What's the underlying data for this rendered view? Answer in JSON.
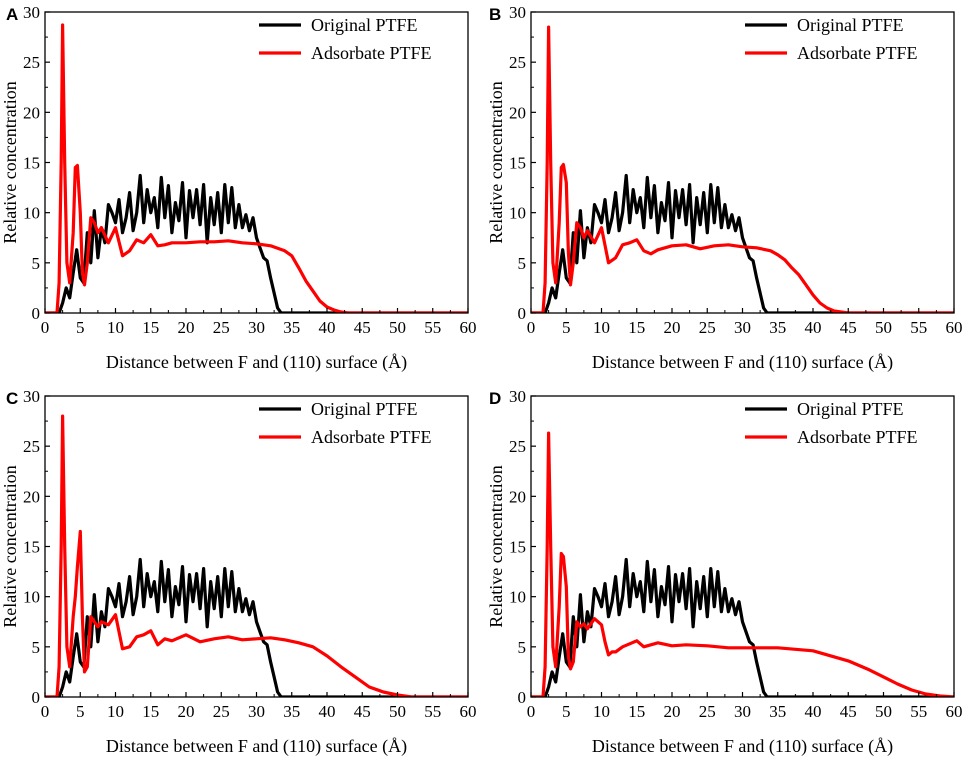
{
  "chart_data": [
    {
      "panel": "A",
      "type": "line",
      "xlabel": "Distance between F and (110) surface (Å)",
      "ylabel": "Relative concentration",
      "xlim": [
        0,
        60
      ],
      "ylim": [
        0,
        30
      ],
      "xticks": [
        0,
        5,
        10,
        15,
        20,
        25,
        30,
        35,
        40,
        45,
        50,
        55,
        60
      ],
      "yticks": [
        0,
        5,
        10,
        15,
        20,
        25,
        30
      ],
      "legend": "top-right",
      "series": [
        {
          "name": "Original PTFE",
          "color": "#000000",
          "x": [
            0,
            2,
            2.5,
            3,
            3.5,
            4,
            4.5,
            5,
            5.5,
            6,
            6.5,
            7,
            7.5,
            8,
            8.5,
            9,
            9.5,
            10,
            10.5,
            11,
            11.5,
            12,
            12.5,
            13,
            13.5,
            14,
            14.5,
            15,
            15.5,
            16,
            16.5,
            17,
            17.5,
            18,
            18.5,
            19,
            19.5,
            20,
            20.5,
            21,
            21.5,
            22,
            22.5,
            23,
            23.5,
            24,
            24.5,
            25,
            25.5,
            26,
            26.5,
            27,
            27.5,
            28,
            28.5,
            29,
            29.5,
            30,
            30.5,
            31,
            31.5,
            32,
            32.5,
            33,
            33.5,
            34,
            60
          ],
          "y": [
            0,
            0,
            1,
            2.5,
            1.5,
            4,
            6.3,
            3.5,
            3,
            8,
            5,
            10.2,
            5.5,
            8.5,
            7,
            10.8,
            10,
            9,
            11.3,
            8,
            9.5,
            12,
            8.2,
            10,
            13.7,
            9,
            12.3,
            10,
            11.5,
            8.5,
            13.5,
            9.5,
            12.7,
            8,
            11,
            9.2,
            13,
            7.5,
            12.2,
            9.5,
            12.3,
            8.8,
            12.8,
            7,
            11.5,
            8.8,
            12,
            8,
            12.8,
            9,
            12.5,
            8.5,
            10.8,
            8.5,
            9.8,
            8.2,
            9.5,
            7.5,
            6.5,
            5.5,
            5.2,
            3.5,
            2,
            0.5,
            0,
            0,
            0
          ]
        },
        {
          "name": "Adsorbate PTFE",
          "color": "#ff0000",
          "x": [
            0,
            1.7,
            2,
            2.3,
            2.5,
            2.8,
            3.1,
            3.5,
            4,
            4.3,
            4.6,
            5,
            5.3,
            5.6,
            6,
            6.5,
            7,
            7.5,
            8,
            9,
            10,
            11,
            12,
            13,
            14,
            15,
            16,
            17,
            18,
            20,
            22,
            24,
            26,
            28,
            30,
            32,
            34,
            35,
            36,
            37,
            38,
            39,
            40,
            41,
            42,
            43,
            45,
            50,
            60
          ],
          "y": [
            0,
            0,
            3,
            15,
            28.7,
            15,
            5,
            3,
            8,
            14.5,
            14.7,
            10,
            4,
            2.8,
            5,
            9.5,
            9,
            8,
            8.5,
            7,
            8.5,
            5.7,
            6.2,
            7.3,
            7,
            7.8,
            6.7,
            6.8,
            7,
            7,
            7.1,
            7.1,
            7.2,
            7,
            6.9,
            6.7,
            6.2,
            5.7,
            4.5,
            3.2,
            2.2,
            1.2,
            0.6,
            0.3,
            0.1,
            0,
            0,
            0,
            0
          ]
        }
      ]
    },
    {
      "panel": "B",
      "type": "line",
      "xlabel": "Distance between F and (110) surface (Å)",
      "ylabel": "Relative concentration",
      "xlim": [
        0,
        60
      ],
      "ylim": [
        0,
        30
      ],
      "xticks": [
        0,
        5,
        10,
        15,
        20,
        25,
        30,
        35,
        40,
        45,
        50,
        55,
        60
      ],
      "yticks": [
        0,
        5,
        10,
        15,
        20,
        25,
        30
      ],
      "legend": "top-right",
      "series": [
        {
          "name": "Original PTFE",
          "color": "#000000",
          "x": [
            0,
            2,
            2.5,
            3,
            3.5,
            4,
            4.5,
            5,
            5.5,
            6,
            6.5,
            7,
            7.5,
            8,
            8.5,
            9,
            9.5,
            10,
            10.5,
            11,
            11.5,
            12,
            12.5,
            13,
            13.5,
            14,
            14.5,
            15,
            15.5,
            16,
            16.5,
            17,
            17.5,
            18,
            18.5,
            19,
            19.5,
            20,
            20.5,
            21,
            21.5,
            22,
            22.5,
            23,
            23.5,
            24,
            24.5,
            25,
            25.5,
            26,
            26.5,
            27,
            27.5,
            28,
            28.5,
            29,
            29.5,
            30,
            30.5,
            31,
            31.5,
            32,
            32.5,
            33,
            33.5,
            34,
            60
          ],
          "y": [
            0,
            0,
            1,
            2.5,
            1.5,
            4,
            6.3,
            3.5,
            3,
            8,
            5,
            10.2,
            5.5,
            8.5,
            7,
            10.8,
            10,
            9,
            11.3,
            8,
            9.5,
            12,
            8.2,
            10,
            13.7,
            9,
            12.3,
            10,
            11.5,
            8.5,
            13.5,
            9.5,
            12.7,
            8,
            11,
            9.2,
            13,
            7.5,
            12.2,
            9.5,
            12.3,
            8.8,
            12.8,
            7,
            11.5,
            8.8,
            12,
            8,
            12.8,
            9,
            12.5,
            8.5,
            10.8,
            8.5,
            9.8,
            8.2,
            9.5,
            7.5,
            6.5,
            5.5,
            5.2,
            3.5,
            2,
            0.5,
            0,
            0,
            0
          ]
        },
        {
          "name": "Adsorbate PTFE",
          "color": "#ff0000",
          "x": [
            0,
            1.7,
            2,
            2.3,
            2.5,
            2.8,
            3.1,
            3.5,
            4,
            4.3,
            4.6,
            5,
            5.3,
            5.6,
            6,
            6.5,
            7,
            7.5,
            8,
            9,
            10,
            11,
            12,
            13,
            14,
            15,
            16,
            17,
            18,
            20,
            22,
            24,
            26,
            28,
            30,
            32,
            34,
            35,
            36,
            37,
            38,
            39,
            40,
            41,
            42,
            43,
            45,
            50,
            60
          ],
          "y": [
            0,
            0,
            3,
            15,
            28.5,
            15,
            5,
            3,
            9,
            14.5,
            14.8,
            13,
            6,
            2.8,
            5,
            9,
            8.5,
            7.5,
            8.2,
            7,
            8.5,
            5,
            5.5,
            6.8,
            7,
            7.3,
            6.2,
            5.9,
            6.3,
            6.7,
            6.8,
            6.4,
            6.7,
            6.8,
            6.6,
            6.5,
            6.2,
            5.8,
            5.3,
            4.5,
            3.8,
            2.8,
            1.8,
            1,
            0.5,
            0.2,
            0,
            0,
            0
          ]
        }
      ]
    },
    {
      "panel": "C",
      "type": "line",
      "xlabel": "Distance between F and (110) surface (Å)",
      "ylabel": "Relative concentration",
      "xlim": [
        0,
        60
      ],
      "ylim": [
        0,
        30
      ],
      "xticks": [
        0,
        5,
        10,
        15,
        20,
        25,
        30,
        35,
        40,
        45,
        50,
        55,
        60
      ],
      "yticks": [
        0,
        5,
        10,
        15,
        20,
        25,
        30
      ],
      "legend": "top-right",
      "series": [
        {
          "name": "Original PTFE",
          "color": "#000000",
          "x": [
            0,
            2,
            2.5,
            3,
            3.5,
            4,
            4.5,
            5,
            5.5,
            6,
            6.5,
            7,
            7.5,
            8,
            8.5,
            9,
            9.5,
            10,
            10.5,
            11,
            11.5,
            12,
            12.5,
            13,
            13.5,
            14,
            14.5,
            15,
            15.5,
            16,
            16.5,
            17,
            17.5,
            18,
            18.5,
            19,
            19.5,
            20,
            20.5,
            21,
            21.5,
            22,
            22.5,
            23,
            23.5,
            24,
            24.5,
            25,
            25.5,
            26,
            26.5,
            27,
            27.5,
            28,
            28.5,
            29,
            29.5,
            30,
            30.5,
            31,
            31.5,
            32,
            32.5,
            33,
            33.5,
            34,
            60
          ],
          "y": [
            0,
            0,
            1,
            2.5,
            1.5,
            4,
            6.3,
            3.5,
            3,
            8,
            5,
            10.2,
            5.5,
            8.5,
            7,
            10.8,
            10,
            9,
            11.3,
            8,
            9.5,
            12,
            8.2,
            10,
            13.7,
            9,
            12.3,
            10,
            11.5,
            8.5,
            13.5,
            9.5,
            12.7,
            8,
            11,
            9.2,
            13,
            7.5,
            12.2,
            9.5,
            12.3,
            8.8,
            12.8,
            7,
            11.5,
            8.8,
            12,
            8,
            12.8,
            9,
            12.5,
            8.5,
            10.8,
            8.5,
            9.8,
            8.2,
            9.5,
            7.5,
            6.5,
            5.5,
            5.2,
            3.5,
            2,
            0.5,
            0,
            0,
            0
          ]
        },
        {
          "name": "Adsorbate PTFE",
          "color": "#ff0000",
          "x": [
            0,
            1.7,
            2,
            2.3,
            2.5,
            2.8,
            3.1,
            3.5,
            4,
            4.3,
            4.6,
            5,
            5.3,
            5.6,
            6,
            6.5,
            7,
            7.5,
            8,
            9,
            10,
            11,
            12,
            13,
            14,
            15,
            16,
            17,
            18,
            20,
            22,
            24,
            26,
            28,
            30,
            32,
            34,
            36,
            38,
            40,
            42,
            44,
            46,
            48,
            50,
            52,
            55,
            60
          ],
          "y": [
            0,
            0,
            3,
            15,
            28,
            15,
            5,
            3,
            8,
            10,
            13,
            16.5,
            8,
            2.5,
            3,
            8,
            7.5,
            7,
            7.5,
            7.2,
            8.2,
            4.8,
            5,
            6,
            6.2,
            6.6,
            5.2,
            5.8,
            5.6,
            6.2,
            5.5,
            5.8,
            6,
            5.7,
            5.8,
            5.9,
            5.7,
            5.4,
            5,
            4.1,
            3,
            2,
            1,
            0.5,
            0.2,
            0,
            0,
            0
          ]
        }
      ]
    },
    {
      "panel": "D",
      "type": "line",
      "xlabel": "Distance between F and (110) surface (Å)",
      "ylabel": "Relative concentration",
      "xlim": [
        0,
        60
      ],
      "ylim": [
        0,
        30
      ],
      "xticks": [
        0,
        5,
        10,
        15,
        20,
        25,
        30,
        35,
        40,
        45,
        50,
        55,
        60
      ],
      "yticks": [
        0,
        5,
        10,
        15,
        20,
        25,
        30
      ],
      "legend": "top-right",
      "series": [
        {
          "name": "Original PTFE",
          "color": "#000000",
          "x": [
            0,
            2,
            2.5,
            3,
            3.5,
            4,
            4.5,
            5,
            5.5,
            6,
            6.5,
            7,
            7.5,
            8,
            8.5,
            9,
            9.5,
            10,
            10.5,
            11,
            11.5,
            12,
            12.5,
            13,
            13.5,
            14,
            14.5,
            15,
            15.5,
            16,
            16.5,
            17,
            17.5,
            18,
            18.5,
            19,
            19.5,
            20,
            20.5,
            21,
            21.5,
            22,
            22.5,
            23,
            23.5,
            24,
            24.5,
            25,
            25.5,
            26,
            26.5,
            27,
            27.5,
            28,
            28.5,
            29,
            29.5,
            30,
            30.5,
            31,
            31.5,
            32,
            32.5,
            33,
            33.5,
            34,
            60
          ],
          "y": [
            0,
            0,
            1,
            2.5,
            1.5,
            4,
            6.3,
            3.5,
            3,
            8,
            5,
            10.2,
            5.5,
            8.5,
            7,
            10.8,
            10,
            9,
            11.3,
            8,
            9.5,
            12,
            8.2,
            10,
            13.7,
            9,
            12.3,
            10,
            11.5,
            8.5,
            13.5,
            9.5,
            12.7,
            8,
            11,
            9.2,
            13,
            7.5,
            12.2,
            9.5,
            12.3,
            8.8,
            12.8,
            7,
            11.5,
            8.8,
            12,
            8,
            12.8,
            9,
            12.5,
            8.5,
            10.8,
            8.5,
            9.8,
            8.2,
            9.5,
            7.5,
            6.5,
            5.5,
            5.2,
            3.5,
            2,
            0.5,
            0,
            0,
            0
          ]
        },
        {
          "name": "Adsorbate PTFE",
          "color": "#ff0000",
          "x": [
            0,
            1.7,
            2,
            2.3,
            2.5,
            2.8,
            3.1,
            3.5,
            4,
            4.3,
            4.6,
            5,
            5.3,
            5.6,
            6,
            6.5,
            7,
            7.5,
            8,
            9,
            10,
            10.5,
            11,
            11.5,
            12,
            13,
            14,
            15,
            16,
            18,
            20,
            22,
            25,
            28,
            30,
            35,
            40,
            45,
            48,
            50,
            52,
            54,
            56,
            58,
            60
          ],
          "y": [
            0,
            0,
            3,
            15,
            26.3,
            15,
            5,
            3,
            9,
            14.3,
            14,
            11,
            4,
            2.8,
            3.5,
            7.5,
            7,
            7.3,
            6.8,
            7.8,
            7.2,
            5.5,
            4.2,
            4.5,
            4.5,
            5,
            5.3,
            5.6,
            5,
            5.4,
            5.1,
            5.2,
            5.1,
            4.9,
            4.9,
            4.9,
            4.6,
            3.6,
            2.7,
            2,
            1.3,
            0.7,
            0.3,
            0.1,
            0
          ]
        }
      ]
    }
  ]
}
